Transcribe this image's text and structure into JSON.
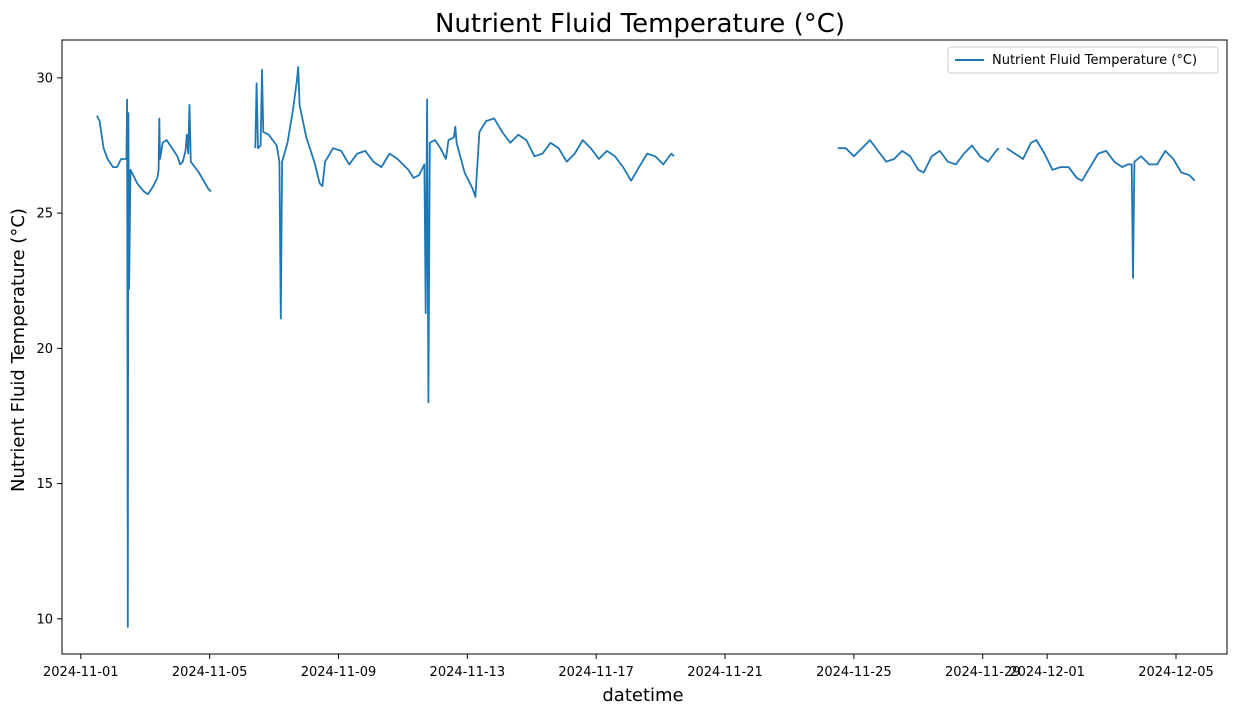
{
  "chart_data": {
    "type": "line",
    "title": "Nutrient Fluid Temperature (°C)",
    "xlabel": "datetime",
    "ylabel": "Nutrient Fluid Temperature (°C)",
    "xlim": [
      "2024-10-31T10:00",
      "2024-12-06T14:00"
    ],
    "ylim": [
      8.7,
      31.4
    ],
    "grid": false,
    "legend_position": "top-right",
    "line_color": "#1f77b4",
    "x_ticks": [
      "2024-11-01",
      "2024-11-05",
      "2024-11-09",
      "2024-11-13",
      "2024-11-17",
      "2024-11-21",
      "2024-11-25",
      "2024-11-29",
      "2024-12-01",
      "2024-12-05"
    ],
    "x_tick_labels": [
      "2024-11-01",
      "2024-11-05",
      "2024-11-09",
      "2024-11-13",
      "2024-11-17",
      "2024-11-21",
      "2024-11-25",
      "2024-11-29",
      "2024-12-01",
      "2024-12-05"
    ],
    "y_ticks": [
      10,
      15,
      20,
      25,
      30
    ],
    "y_tick_labels": [
      "10",
      "15",
      "20",
      "25",
      "30"
    ],
    "series": [
      {
        "name": "Nutrient Fluid Temperature (°C)",
        "segments": [
          [
            [
              "2024-11-01T12:00",
              28.6
            ],
            [
              "2024-11-01T14:00",
              28.4
            ],
            [
              "2024-11-01T17:00",
              27.4
            ],
            [
              "2024-11-01T20:00",
              27.0
            ],
            [
              "2024-11-02T00:00",
              26.7
            ],
            [
              "2024-11-02T03:00",
              26.7
            ],
            [
              "2024-11-02T06:00",
              27.0
            ],
            [
              "2024-11-02T09:00",
              27.0
            ],
            [
              "2024-11-02T10:00",
              27.0
            ],
            [
              "2024-11-02T10:30",
              29.2
            ],
            [
              "2024-11-02T11:00",
              9.7
            ],
            [
              "2024-11-02T11:30",
              28.7
            ],
            [
              "2024-11-02T12:00",
              22.2
            ],
            [
              "2024-11-02T13:00",
              26.6
            ],
            [
              "2024-11-02T18:00",
              26.1
            ],
            [
              "2024-11-02T23:00",
              25.8
            ],
            [
              "2024-11-03T02:00",
              25.7
            ],
            [
              "2024-11-03T06:00",
              26.0
            ],
            [
              "2024-11-03T09:00",
              26.3
            ],
            [
              "2024-11-03T10:00",
              26.6
            ],
            [
              "2024-11-03T10:30",
              28.5
            ],
            [
              "2024-11-03T11:00",
              27.0
            ],
            [
              "2024-11-03T13:00",
              27.6
            ],
            [
              "2024-11-03T16:00",
              27.7
            ],
            [
              "2024-11-03T20:00",
              27.4
            ],
            [
              "2024-11-04T00:00",
              27.1
            ],
            [
              "2024-11-04T02:00",
              26.8
            ],
            [
              "2024-11-04T04:00",
              26.9
            ],
            [
              "2024-11-04T06:00",
              27.3
            ],
            [
              "2024-11-04T07:00",
              27.9
            ],
            [
              "2024-11-04T08:00",
              27.2
            ],
            [
              "2024-11-04T09:00",
              29.0
            ],
            [
              "2024-11-04T10:00",
              26.9
            ],
            [
              "2024-11-04T16:00",
              26.5
            ],
            [
              "2024-11-04T23:00",
              25.9
            ],
            [
              "2024-11-05T01:00",
              25.8
            ]
          ],
          [
            [
              "2024-11-06T10:00",
              27.4
            ],
            [
              "2024-11-06T11:00",
              29.8
            ],
            [
              "2024-11-06T12:00",
              27.4
            ],
            [
              "2024-11-06T14:00",
              27.5
            ],
            [
              "2024-11-06T15:00",
              30.3
            ],
            [
              "2024-11-06T16:00",
              28.0
            ],
            [
              "2024-11-06T20:00",
              27.9
            ],
            [
              "2024-11-07T02:00",
              27.5
            ],
            [
              "2024-11-07T04:00",
              26.9
            ],
            [
              "2024-11-07T05:00",
              21.1
            ],
            [
              "2024-11-07T06:00",
              26.9
            ],
            [
              "2024-11-07T10:00",
              27.6
            ],
            [
              "2024-11-07T14:00",
              28.8
            ],
            [
              "2024-11-07T17:00",
              29.9
            ],
            [
              "2024-11-07T18:00",
              30.4
            ],
            [
              "2024-11-07T19:00",
              29.0
            ],
            [
              "2024-11-08T00:00",
              27.8
            ],
            [
              "2024-11-08T06:00",
              26.9
            ],
            [
              "2024-11-08T10:00",
              26.1
            ],
            [
              "2024-11-08T12:00",
              26.0
            ],
            [
              "2024-11-08T14:00",
              26.9
            ],
            [
              "2024-11-08T20:00",
              27.4
            ],
            [
              "2024-11-09T02:00",
              27.3
            ],
            [
              "2024-11-09T08:00",
              26.8
            ],
            [
              "2024-11-09T14:00",
              27.2
            ],
            [
              "2024-11-09T20:00",
              27.3
            ],
            [
              "2024-11-10T02:00",
              26.9
            ],
            [
              "2024-11-10T08:00",
              26.7
            ],
            [
              "2024-11-10T14:00",
              27.2
            ],
            [
              "2024-11-10T20:00",
              27.0
            ],
            [
              "2024-11-11T04:00",
              26.6
            ],
            [
              "2024-11-11T08:00",
              26.3
            ],
            [
              "2024-11-11T12:00",
              26.4
            ],
            [
              "2024-11-11T16:00",
              26.8
            ],
            [
              "2024-11-11T17:00",
              21.3
            ],
            [
              "2024-11-11T18:00",
              29.2
            ],
            [
              "2024-11-11T19:00",
              18.0
            ],
            [
              "2024-11-11T20:00",
              27.6
            ],
            [
              "2024-11-12T00:00",
              27.7
            ],
            [
              "2024-11-12T04:00",
              27.4
            ],
            [
              "2024-11-12T08:00",
              27.0
            ],
            [
              "2024-11-12T10:00",
              27.7
            ],
            [
              "2024-11-12T14:00",
              27.8
            ],
            [
              "2024-11-12T15:00",
              28.2
            ],
            [
              "2024-11-12T16:00",
              27.6
            ],
            [
              "2024-11-12T22:00",
              26.5
            ],
            [
              "2024-11-13T04:00",
              25.9
            ],
            [
              "2024-11-13T06:00",
              25.6
            ],
            [
              "2024-11-13T09:00",
              28.0
            ],
            [
              "2024-11-13T14:00",
              28.4
            ],
            [
              "2024-11-13T20:00",
              28.5
            ],
            [
              "2024-11-14T02:00",
              28.0
            ],
            [
              "2024-11-14T08:00",
              27.6
            ],
            [
              "2024-11-14T14:00",
              27.9
            ],
            [
              "2024-11-14T20:00",
              27.7
            ],
            [
              "2024-11-15T02:00",
              27.1
            ],
            [
              "2024-11-15T08:00",
              27.2
            ],
            [
              "2024-11-15T14:00",
              27.6
            ],
            [
              "2024-11-15T20:00",
              27.4
            ],
            [
              "2024-11-16T02:00",
              26.9
            ],
            [
              "2024-11-16T08:00",
              27.2
            ],
            [
              "2024-11-16T14:00",
              27.7
            ],
            [
              "2024-11-16T20:00",
              27.4
            ],
            [
              "2024-11-17T02:00",
              27.0
            ],
            [
              "2024-11-17T08:00",
              27.3
            ],
            [
              "2024-11-17T14:00",
              27.1
            ],
            [
              "2024-11-17T20:00",
              26.7
            ],
            [
              "2024-11-18T02:00",
              26.2
            ],
            [
              "2024-11-18T08:00",
              26.7
            ],
            [
              "2024-11-18T14:00",
              27.2
            ],
            [
              "2024-11-18T20:00",
              27.1
            ],
            [
              "2024-11-19T02:00",
              26.8
            ],
            [
              "2024-11-19T08:00",
              27.2
            ],
            [
              "2024-11-19T10:00",
              27.1
            ]
          ],
          [
            [
              "2024-11-24T12:00",
              27.4
            ],
            [
              "2024-11-24T18:00",
              27.4
            ],
            [
              "2024-11-25T00:00",
              27.1
            ],
            [
              "2024-11-25T06:00",
              27.4
            ],
            [
              "2024-11-25T12:00",
              27.7
            ],
            [
              "2024-11-25T18:00",
              27.3
            ],
            [
              "2024-11-26T00:00",
              26.9
            ],
            [
              "2024-11-26T06:00",
              27.0
            ],
            [
              "2024-11-26T12:00",
              27.3
            ],
            [
              "2024-11-26T18:00",
              27.1
            ],
            [
              "2024-11-27T00:00",
              26.6
            ],
            [
              "2024-11-27T04:00",
              26.5
            ],
            [
              "2024-11-27T10:00",
              27.1
            ],
            [
              "2024-11-27T16:00",
              27.3
            ],
            [
              "2024-11-27T22:00",
              26.9
            ],
            [
              "2024-11-28T04:00",
              26.8
            ],
            [
              "2024-11-28T10:00",
              27.2
            ],
            [
              "2024-11-28T16:00",
              27.5
            ],
            [
              "2024-11-28T22:00",
              27.1
            ],
            [
              "2024-11-29T04:00",
              26.9
            ],
            [
              "2024-11-29T10:00",
              27.3
            ],
            [
              "2024-11-29T12:00",
              27.4
            ]
          ],
          [
            [
              "2024-11-29T18:00",
              27.4
            ],
            [
              "2024-11-30T00:00",
              27.2
            ],
            [
              "2024-11-30T06:00",
              27.0
            ],
            [
              "2024-11-30T12:00",
              27.6
            ],
            [
              "2024-11-30T16:00",
              27.7
            ],
            [
              "2024-11-30T22:00",
              27.2
            ],
            [
              "2024-12-01T04:00",
              26.6
            ],
            [
              "2024-12-01T10:00",
              26.7
            ],
            [
              "2024-12-01T16:00",
              26.7
            ],
            [
              "2024-12-01T22:00",
              26.3
            ],
            [
              "2024-12-02T02:00",
              26.2
            ],
            [
              "2024-12-02T08:00",
              26.7
            ],
            [
              "2024-12-02T14:00",
              27.2
            ],
            [
              "2024-12-02T20:00",
              27.3
            ],
            [
              "2024-12-03T02:00",
              26.9
            ],
            [
              "2024-12-03T08:00",
              26.7
            ],
            [
              "2024-12-03T12:00",
              26.8
            ],
            [
              "2024-12-03T15:00",
              26.8
            ],
            [
              "2024-12-03T16:00",
              22.6
            ],
            [
              "2024-12-03T17:00",
              26.9
            ],
            [
              "2024-12-03T22:00",
              27.1
            ],
            [
              "2024-12-04T04:00",
              26.8
            ],
            [
              "2024-12-04T10:00",
              26.8
            ],
            [
              "2024-12-04T16:00",
              27.3
            ],
            [
              "2024-12-04T22:00",
              27.0
            ],
            [
              "2024-12-05T04:00",
              26.5
            ],
            [
              "2024-12-05T10:00",
              26.4
            ],
            [
              "2024-12-05T14:00",
              26.2
            ]
          ]
        ]
      }
    ]
  }
}
